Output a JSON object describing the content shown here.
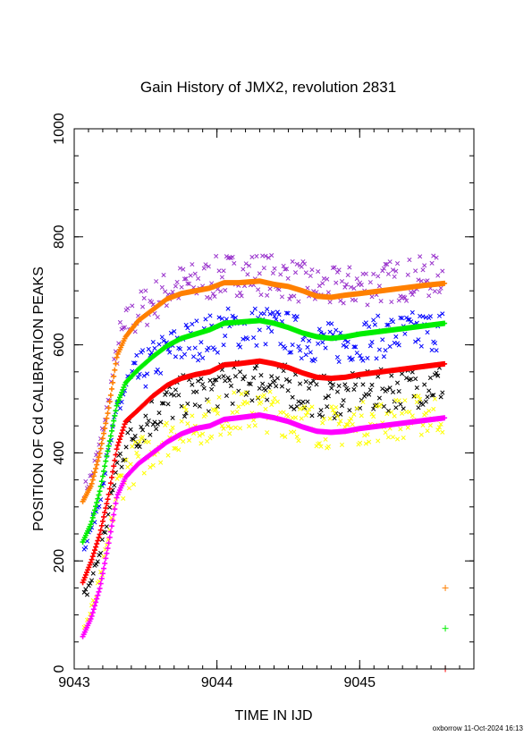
{
  "chart_data": {
    "type": "scatter",
    "title": "Gain History of JMX2, revolution 2831",
    "xlabel": "TIME IN IJD",
    "ylabel": "POSITION OF Cd CALIBRATION PEAKS",
    "xlim": [
      9043.0,
      9045.8
    ],
    "ylim": [
      0,
      1000
    ],
    "x_ticks": [
      9043,
      9044,
      9045
    ],
    "x_tick_labels": [
      "9043",
      "9044",
      "9045"
    ],
    "y_ticks": [
      0,
      200,
      400,
      600,
      800,
      1000
    ],
    "y_tick_labels": [
      "0",
      "200",
      "400",
      "600",
      "800",
      "1000"
    ],
    "grid": false,
    "footer": "oxborrow 11-Oct-2024 16:13",
    "smooth_series": [
      {
        "color": "#ff8000",
        "marker": "+",
        "points": [
          [
            9043.06,
            310
          ],
          [
            9043.12,
            340
          ],
          [
            9043.18,
            400
          ],
          [
            9043.24,
            480
          ],
          [
            9043.3,
            580
          ],
          [
            9043.36,
            615
          ],
          [
            9043.45,
            645
          ],
          [
            9043.55,
            665
          ],
          [
            9043.65,
            685
          ],
          [
            9043.75,
            695
          ],
          [
            9043.85,
            700
          ],
          [
            9043.95,
            705
          ],
          [
            9044.05,
            715
          ],
          [
            9044.15,
            715
          ],
          [
            9044.3,
            718
          ],
          [
            9044.4,
            712
          ],
          [
            9044.5,
            708
          ],
          [
            9044.6,
            700
          ],
          [
            9044.7,
            690
          ],
          [
            9044.8,
            688
          ],
          [
            9044.9,
            692
          ],
          [
            9045.0,
            695
          ],
          [
            9045.15,
            700
          ],
          [
            9045.3,
            705
          ],
          [
            9045.45,
            710
          ],
          [
            9045.6,
            714
          ]
        ]
      },
      {
        "color": "#00ee00",
        "marker": "+",
        "points": [
          [
            9043.06,
            235
          ],
          [
            9043.12,
            270
          ],
          [
            9043.18,
            330
          ],
          [
            9043.24,
            410
          ],
          [
            9043.3,
            490
          ],
          [
            9043.36,
            530
          ],
          [
            9043.45,
            555
          ],
          [
            9043.55,
            578
          ],
          [
            9043.65,
            598
          ],
          [
            9043.75,
            612
          ],
          [
            9043.85,
            620
          ],
          [
            9043.95,
            628
          ],
          [
            9044.05,
            640
          ],
          [
            9044.15,
            642
          ],
          [
            9044.3,
            645
          ],
          [
            9044.4,
            640
          ],
          [
            9044.5,
            632
          ],
          [
            9044.6,
            622
          ],
          [
            9044.7,
            615
          ],
          [
            9044.8,
            612
          ],
          [
            9044.9,
            615
          ],
          [
            9045.0,
            620
          ],
          [
            9045.15,
            625
          ],
          [
            9045.3,
            630
          ],
          [
            9045.45,
            635
          ],
          [
            9045.6,
            640
          ]
        ]
      },
      {
        "color": "#ff0000",
        "marker": "+",
        "points": [
          [
            9043.06,
            160
          ],
          [
            9043.12,
            200
          ],
          [
            9043.18,
            250
          ],
          [
            9043.24,
            320
          ],
          [
            9043.3,
            410
          ],
          [
            9043.36,
            458
          ],
          [
            9043.45,
            480
          ],
          [
            9043.55,
            505
          ],
          [
            9043.65,
            525
          ],
          [
            9043.75,
            538
          ],
          [
            9043.85,
            545
          ],
          [
            9043.95,
            550
          ],
          [
            9044.05,
            563
          ],
          [
            9044.15,
            565
          ],
          [
            9044.3,
            570
          ],
          [
            9044.4,
            565
          ],
          [
            9044.5,
            558
          ],
          [
            9044.6,
            548
          ],
          [
            9044.7,
            540
          ],
          [
            9044.8,
            538
          ],
          [
            9044.9,
            540
          ],
          [
            9045.0,
            545
          ],
          [
            9045.15,
            550
          ],
          [
            9045.3,
            555
          ],
          [
            9045.45,
            560
          ],
          [
            9045.6,
            565
          ]
        ]
      },
      {
        "color": "#ff00ff",
        "marker": "+",
        "points": [
          [
            9043.06,
            60
          ],
          [
            9043.12,
            95
          ],
          [
            9043.18,
            150
          ],
          [
            9043.24,
            230
          ],
          [
            9043.3,
            320
          ],
          [
            9043.36,
            355
          ],
          [
            9043.45,
            380
          ],
          [
            9043.55,
            400
          ],
          [
            9043.65,
            420
          ],
          [
            9043.75,
            435
          ],
          [
            9043.85,
            445
          ],
          [
            9043.95,
            450
          ],
          [
            9044.05,
            462
          ],
          [
            9044.15,
            465
          ],
          [
            9044.3,
            470
          ],
          [
            9044.4,
            465
          ],
          [
            9044.5,
            458
          ],
          [
            9044.6,
            448
          ],
          [
            9044.7,
            440
          ],
          [
            9044.8,
            438
          ],
          [
            9044.9,
            440
          ],
          [
            9045.0,
            445
          ],
          [
            9045.15,
            450
          ],
          [
            9045.3,
            455
          ],
          [
            9045.45,
            460
          ],
          [
            9045.6,
            465
          ]
        ]
      }
    ],
    "scatter_series": [
      {
        "color": "#9933cc",
        "marker": "x",
        "base": 15,
        "spread": 40
      },
      {
        "color": "#0000ff",
        "marker": "x",
        "base": -10,
        "spread": 40
      },
      {
        "color": "#000000",
        "marker": "x",
        "base": -35,
        "spread": 40
      },
      {
        "color": "#ffff00",
        "marker": "x",
        "base": 10,
        "spread": 40
      }
    ],
    "stray_points": [
      {
        "x": 9045.6,
        "y": 150,
        "color": "#ff8000",
        "marker": "+"
      },
      {
        "x": 9045.6,
        "y": 75,
        "color": "#00ee00",
        "marker": "+"
      },
      {
        "x": 9045.6,
        "y": 0,
        "color": "#ff0000",
        "marker": "+"
      }
    ]
  }
}
